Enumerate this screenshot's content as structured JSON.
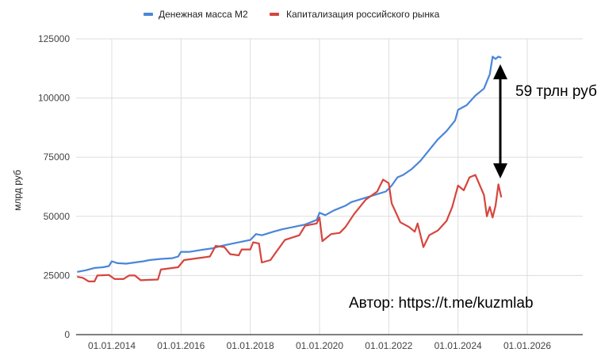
{
  "chart_data": {
    "type": "line",
    "title": "",
    "xlabel": "",
    "ylabel": "млрд руб",
    "ylim": [
      0,
      125000
    ],
    "yticks": [
      "0",
      "25000",
      "50000",
      "75000",
      "100000",
      "125000"
    ],
    "xticks": [
      "01.01.2014",
      "01.01.2016",
      "01.01.2018",
      "01.01.2020",
      "01.01.2022",
      "01.01.2024",
      "01.01.2026"
    ],
    "grid": true,
    "legend_position": "top",
    "series": [
      {
        "name": "Денежная масса М2",
        "color": "#4a86d8",
        "points": [
          [
            "2013-01",
            26500
          ],
          [
            "2013-04",
            27200
          ],
          [
            "2013-07",
            28200
          ],
          [
            "2013-10",
            28500
          ],
          [
            "2013-12",
            29000
          ],
          [
            "2014-01",
            31000
          ],
          [
            "2014-03",
            30200
          ],
          [
            "2014-06",
            30000
          ],
          [
            "2014-09",
            30500
          ],
          [
            "2014-12",
            31000
          ],
          [
            "2015-02",
            31500
          ],
          [
            "2015-06",
            32000
          ],
          [
            "2015-10",
            32300
          ],
          [
            "2015-12",
            33000
          ],
          [
            "2016-01",
            35000
          ],
          [
            "2016-04",
            35000
          ],
          [
            "2016-08",
            35800
          ],
          [
            "2016-12",
            36500
          ],
          [
            "2017-03",
            37500
          ],
          [
            "2017-07",
            38500
          ],
          [
            "2017-11",
            39500
          ],
          [
            "2018-01",
            40000
          ],
          [
            "2018-03",
            42500
          ],
          [
            "2018-05",
            42000
          ],
          [
            "2018-09",
            43500
          ],
          [
            "2018-12",
            44500
          ],
          [
            "2019-04",
            45500
          ],
          [
            "2019-08",
            46500
          ],
          [
            "2019-12",
            48500
          ],
          [
            "2020-01",
            51500
          ],
          [
            "2020-03",
            50500
          ],
          [
            "2020-06",
            52500
          ],
          [
            "2020-10",
            54500
          ],
          [
            "2020-12",
            56000
          ],
          [
            "2021-04",
            57500
          ],
          [
            "2021-08",
            59000
          ],
          [
            "2021-12",
            60500
          ],
          [
            "2022-02",
            63000
          ],
          [
            "2022-04",
            66500
          ],
          [
            "2022-06",
            67500
          ],
          [
            "2022-09",
            70000
          ],
          [
            "2022-12",
            73500
          ],
          [
            "2023-03",
            78000
          ],
          [
            "2023-06",
            82500
          ],
          [
            "2023-09",
            86000
          ],
          [
            "2023-12",
            90500
          ],
          [
            "2024-01",
            95000
          ],
          [
            "2024-04",
            97000
          ],
          [
            "2024-07",
            101000
          ],
          [
            "2024-10",
            104000
          ],
          [
            "2024-12",
            110000
          ],
          [
            "2025-01",
            117500
          ],
          [
            "2025-02",
            116500
          ],
          [
            "2025-03",
            117500
          ],
          [
            "2025-04",
            117000
          ]
        ]
      },
      {
        "name": "Капитализация российского рынка",
        "color": "#d6453d",
        "points": [
          [
            "2013-01",
            24500
          ],
          [
            "2013-03",
            24000
          ],
          [
            "2013-05",
            22500
          ],
          [
            "2013-07",
            22500
          ],
          [
            "2013-08",
            25000
          ],
          [
            "2013-12",
            25200
          ],
          [
            "2014-02",
            23500
          ],
          [
            "2014-05",
            23500
          ],
          [
            "2014-07",
            25000
          ],
          [
            "2014-09",
            25000
          ],
          [
            "2014-11",
            23000
          ],
          [
            "2015-05",
            23300
          ],
          [
            "2015-06",
            27500
          ],
          [
            "2015-12",
            28500
          ],
          [
            "2016-02",
            31500
          ],
          [
            "2016-08",
            32500
          ],
          [
            "2016-11",
            33000
          ],
          [
            "2017-01",
            37500
          ],
          [
            "2017-04",
            37000
          ],
          [
            "2017-06",
            34000
          ],
          [
            "2017-09",
            33500
          ],
          [
            "2017-10",
            36000
          ],
          [
            "2018-01",
            36000
          ],
          [
            "2018-02",
            39000
          ],
          [
            "2018-04",
            38500
          ],
          [
            "2018-05",
            30500
          ],
          [
            "2018-08",
            31500
          ],
          [
            "2018-10",
            35000
          ],
          [
            "2019-01",
            40000
          ],
          [
            "2019-06",
            42000
          ],
          [
            "2019-08",
            46000
          ],
          [
            "2019-12",
            47000
          ],
          [
            "2020-01",
            49500
          ],
          [
            "2020-02",
            39500
          ],
          [
            "2020-05",
            42500
          ],
          [
            "2020-08",
            43000
          ],
          [
            "2020-10",
            45500
          ],
          [
            "2021-01",
            51000
          ],
          [
            "2021-05",
            57000
          ],
          [
            "2021-09",
            60500
          ],
          [
            "2021-11",
            65500
          ],
          [
            "2022-01",
            64000
          ],
          [
            "2022-02",
            55500
          ],
          [
            "2022-05",
            47500
          ],
          [
            "2022-08",
            45500
          ],
          [
            "2022-10",
            43500
          ],
          [
            "2022-11",
            47000
          ],
          [
            "2023-01",
            37000
          ],
          [
            "2023-03",
            42000
          ],
          [
            "2023-06",
            44000
          ],
          [
            "2023-09",
            48000
          ],
          [
            "2023-11",
            54000
          ],
          [
            "2024-01",
            63000
          ],
          [
            "2024-03",
            61000
          ],
          [
            "2024-05",
            66500
          ],
          [
            "2024-07",
            67500
          ],
          [
            "2024-10",
            59000
          ],
          [
            "2024-11",
            50000
          ],
          [
            "2024-12",
            54000
          ],
          [
            "2025-01",
            49500
          ],
          [
            "2025-02",
            54500
          ],
          [
            "2025-03",
            63500
          ],
          [
            "2025-04",
            58000
          ]
        ]
      }
    ],
    "annotations": {
      "gap_label": "59 трлн руб",
      "author": "Автор: https://t.me/kuzmlab"
    }
  }
}
